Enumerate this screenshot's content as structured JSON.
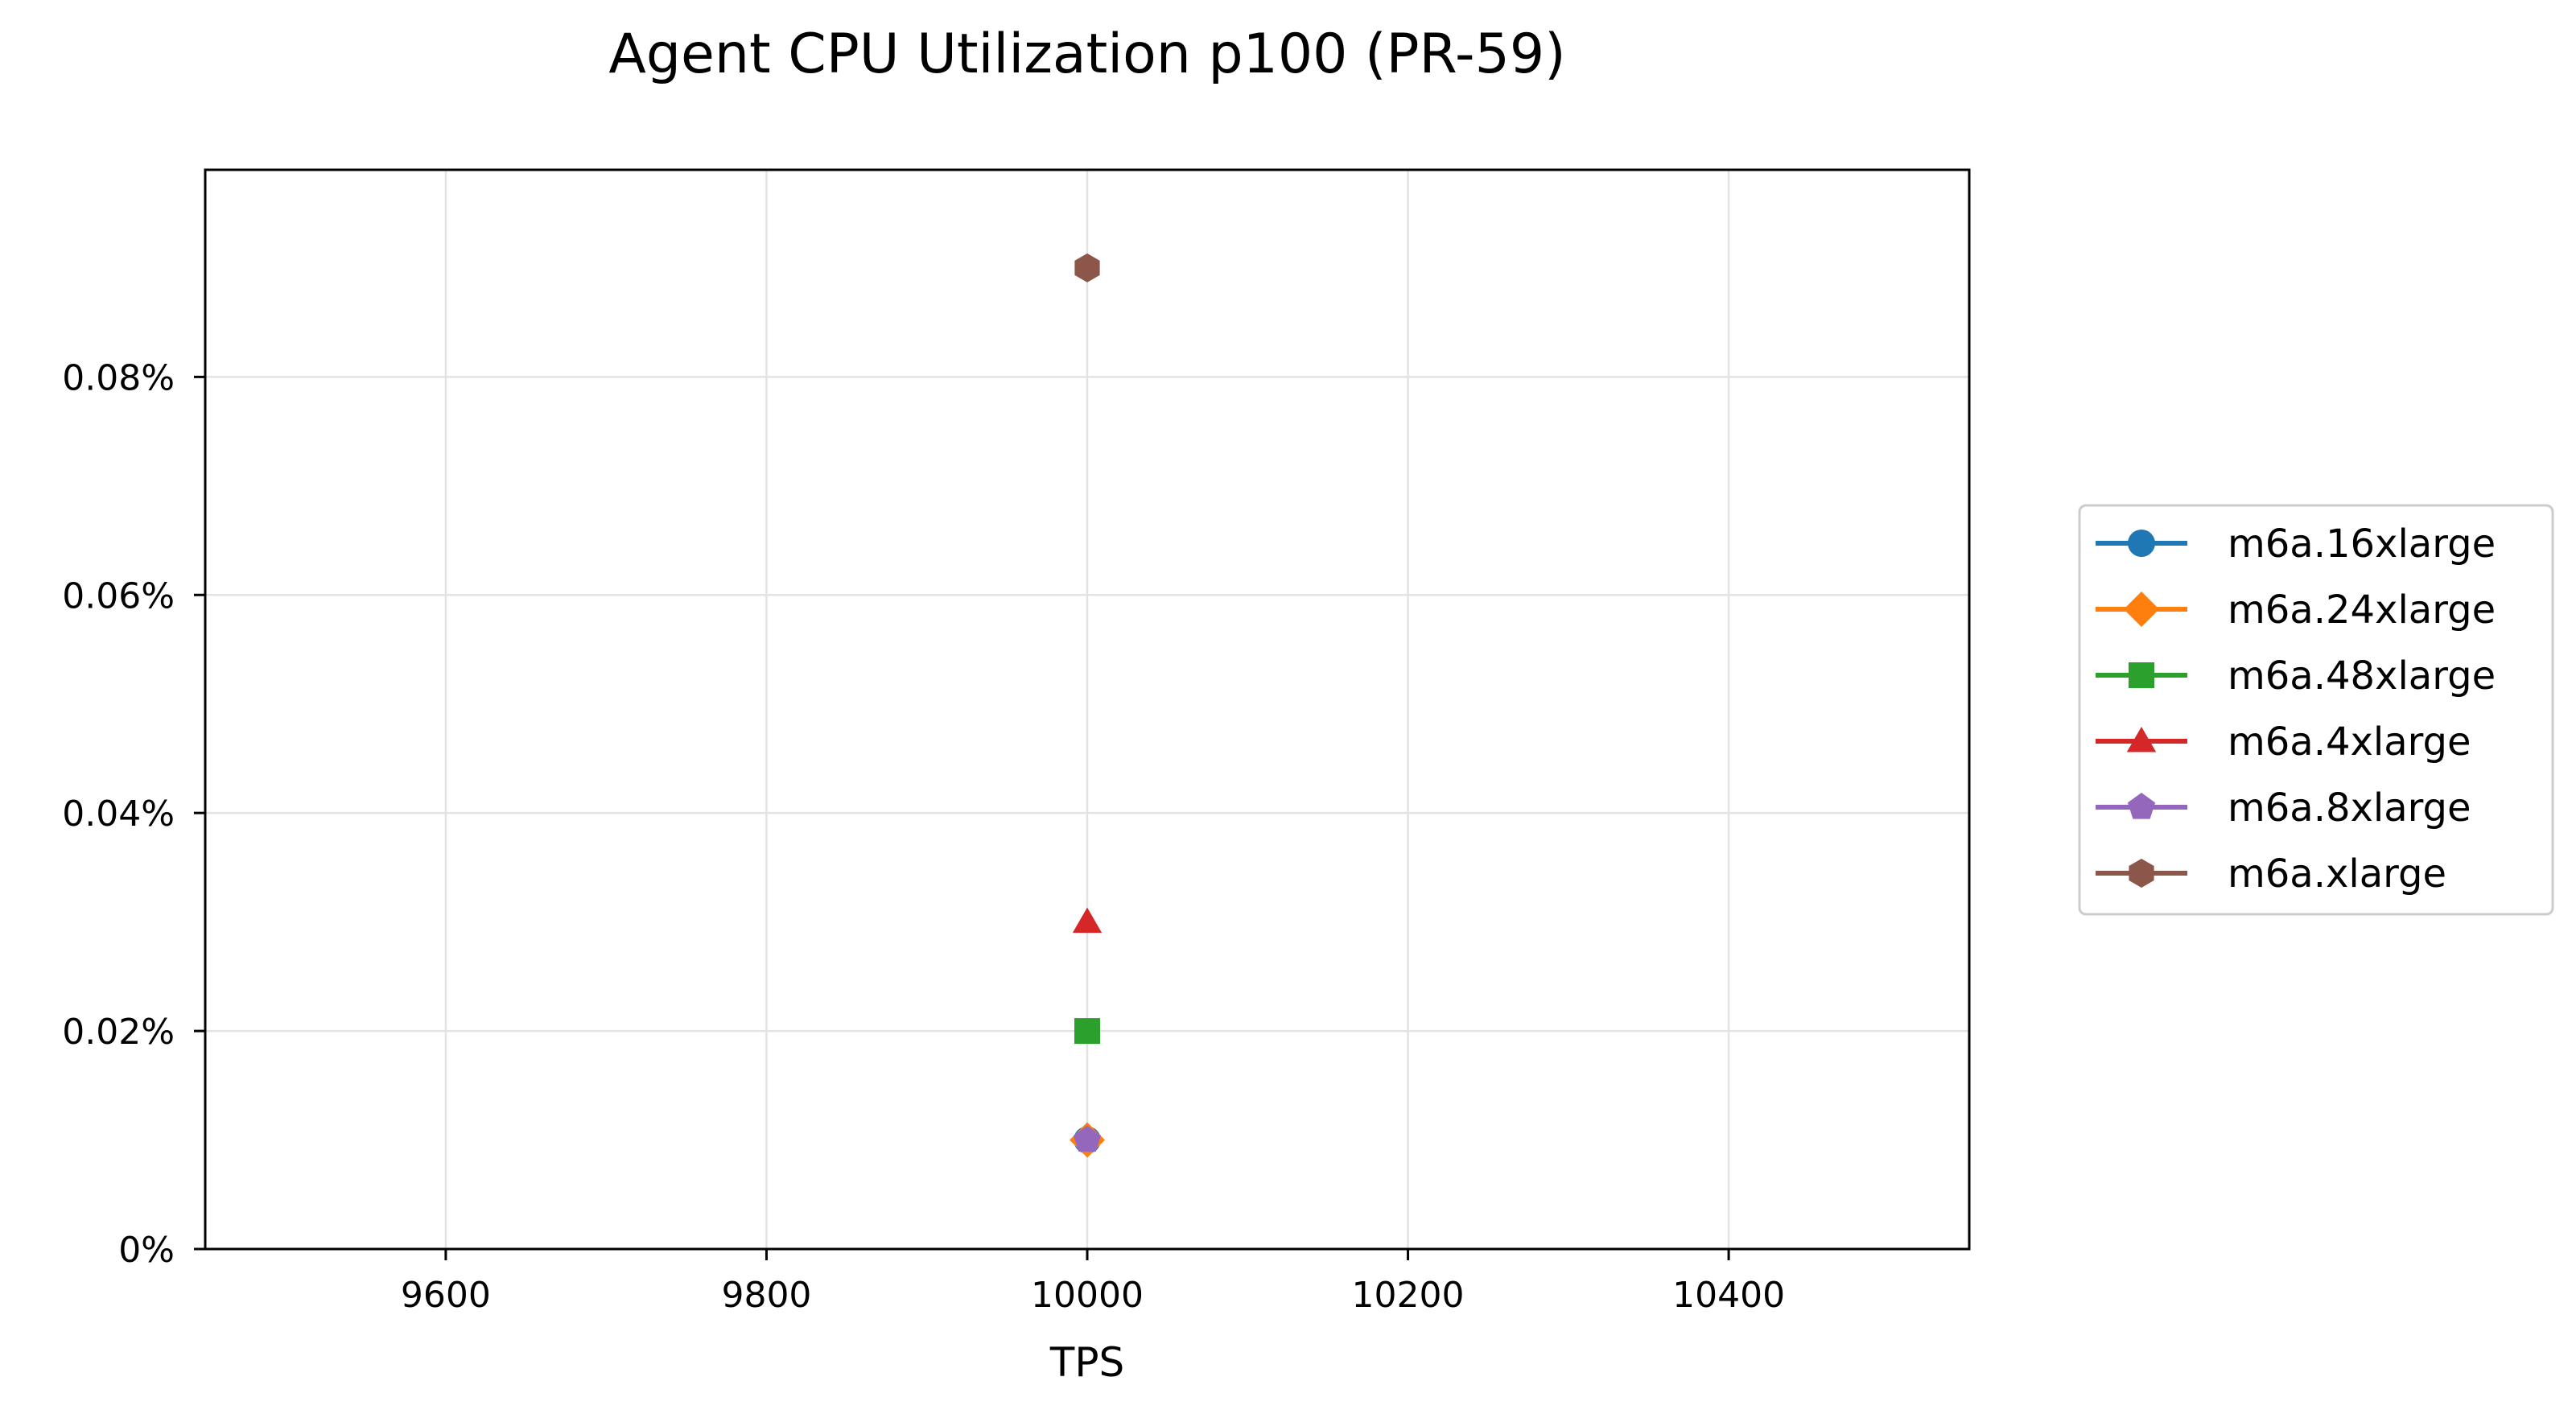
{
  "chart_data": {
    "type": "line",
    "title": "Agent CPU Utilization p100 (PR-59)",
    "xlabel": "TPS",
    "ylabel": "",
    "xlim": [
      9450,
      10550
    ],
    "ylim": [
      0,
      0.099
    ],
    "x_ticks": [
      9600,
      9800,
      10000,
      10200,
      10400
    ],
    "x_tick_labels": [
      "9600",
      "9800",
      "10000",
      "10200",
      "10400"
    ],
    "y_ticks": [
      0,
      0.02,
      0.04,
      0.06,
      0.08
    ],
    "y_tick_labels": [
      "0%",
      "0.02%",
      "0.04%",
      "0.06%",
      "0.08%"
    ],
    "grid": true,
    "legend_position": "right-outside",
    "series": [
      {
        "name": "m6a.16xlarge",
        "color": "#1f77b4",
        "marker": "circle",
        "x": [
          10000
        ],
        "y": [
          0.01
        ]
      },
      {
        "name": "m6a.24xlarge",
        "color": "#ff7f0e",
        "marker": "diamond",
        "x": [
          10000
        ],
        "y": [
          0.01
        ]
      },
      {
        "name": "m6a.48xlarge",
        "color": "#2ca02c",
        "marker": "square",
        "x": [
          10000
        ],
        "y": [
          0.02
        ]
      },
      {
        "name": "m6a.4xlarge",
        "color": "#d62728",
        "marker": "triangle",
        "x": [
          10000
        ],
        "y": [
          0.03
        ]
      },
      {
        "name": "m6a.8xlarge",
        "color": "#9467bd",
        "marker": "pentagon",
        "x": [
          10000
        ],
        "y": [
          0.01
        ]
      },
      {
        "name": "m6a.xlarge",
        "color": "#8c564b",
        "marker": "hexagon",
        "x": [
          10000
        ],
        "y": [
          0.09
        ]
      }
    ]
  }
}
